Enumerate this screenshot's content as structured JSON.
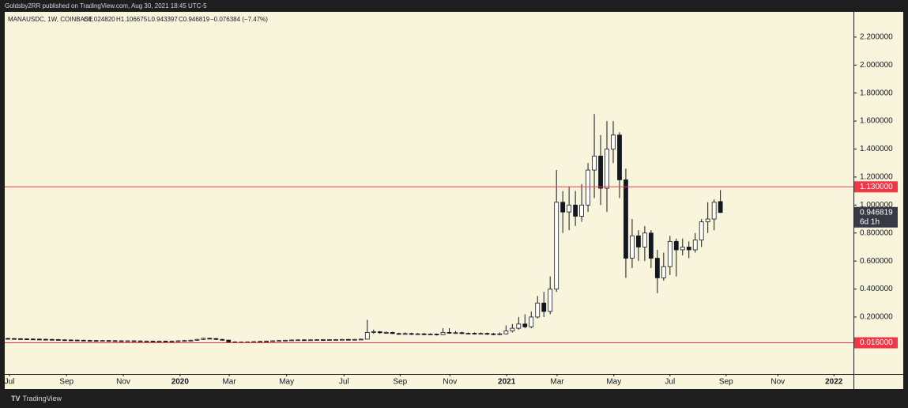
{
  "header": {
    "publisher": "Goldsby2RR published on TradingView.com, Aug 30, 2021 18:45 UTC-5"
  },
  "footer": {
    "brand": "TradingView"
  },
  "chart_data": {
    "type": "candlestick",
    "legend": {
      "symbol": "MANAUSDC, 1W, COINBASE",
      "open": "O1.024820",
      "high": "H1.106675",
      "low": "L0.943397",
      "close": "C0.946819",
      "change": "−0.076384 (−7.47%)"
    },
    "open": [
      0.047,
      0.046,
      0.045,
      0.044,
      0.043,
      0.042,
      0.041,
      0.04,
      0.039,
      0.037,
      0.036,
      0.035,
      0.034,
      0.033,
      0.032,
      0.031,
      0.032,
      0.031,
      0.03,
      0.029,
      0.03,
      0.029,
      0.028,
      0.028,
      0.027,
      0.028,
      0.027,
      0.028,
      0.03,
      0.032,
      0.034,
      0.04,
      0.048,
      0.046,
      0.04,
      0.035,
      0.022,
      0.02,
      0.021,
      0.022,
      0.024,
      0.026,
      0.028,
      0.03,
      0.032,
      0.034,
      0.036,
      0.037,
      0.036,
      0.037,
      0.038,
      0.037,
      0.038,
      0.039,
      0.04,
      0.039,
      0.04,
      0.042,
      0.09,
      0.095,
      0.088,
      0.09,
      0.082,
      0.08,
      0.082,
      0.078,
      0.08,
      0.076,
      0.078,
      0.074,
      0.09,
      0.085,
      0.088,
      0.082,
      0.084,
      0.08,
      0.083,
      0.08,
      0.078,
      0.08,
      0.1,
      0.12,
      0.15,
      0.13,
      0.2,
      0.3,
      0.24,
      0.4,
      1.02,
      0.95,
      1.0,
      0.92,
      1.0,
      1.25,
      1.35,
      1.12,
      1.4,
      1.5,
      1.18,
      0.62,
      0.78,
      0.7,
      0.8,
      0.62,
      0.48,
      0.56,
      0.74,
      0.68,
      0.7,
      0.68,
      0.75,
      0.88,
      0.9,
      1.02482
    ],
    "high": [
      0.051,
      0.05,
      0.049,
      0.048,
      0.047,
      0.046,
      0.045,
      0.044,
      0.043,
      0.041,
      0.04,
      0.039,
      0.038,
      0.037,
      0.036,
      0.036,
      0.036,
      0.035,
      0.034,
      0.034,
      0.034,
      0.033,
      0.032,
      0.032,
      0.032,
      0.032,
      0.032,
      0.034,
      0.036,
      0.038,
      0.044,
      0.052,
      0.052,
      0.05,
      0.044,
      0.039,
      0.026,
      0.025,
      0.026,
      0.028,
      0.03,
      0.032,
      0.034,
      0.036,
      0.038,
      0.04,
      0.041,
      0.041,
      0.041,
      0.042,
      0.042,
      0.042,
      0.043,
      0.044,
      0.044,
      0.044,
      0.046,
      0.18,
      0.11,
      0.1,
      0.098,
      0.095,
      0.088,
      0.09,
      0.088,
      0.086,
      0.085,
      0.084,
      0.082,
      0.12,
      0.12,
      0.1,
      0.095,
      0.09,
      0.09,
      0.09,
      0.088,
      0.086,
      0.09,
      0.14,
      0.15,
      0.2,
      0.22,
      0.24,
      0.35,
      0.38,
      0.49,
      1.25,
      1.1,
      1.13,
      1.1,
      1.15,
      1.3,
      1.65,
      1.5,
      1.6,
      1.6,
      1.52,
      1.26,
      0.9,
      0.82,
      0.85,
      0.82,
      0.68,
      0.66,
      0.78,
      0.76,
      0.76,
      0.74,
      0.8,
      0.9,
      1.02,
      1.04,
      1.106675
    ],
    "low": [
      0.042,
      0.041,
      0.04,
      0.039,
      0.038,
      0.037,
      0.036,
      0.035,
      0.033,
      0.032,
      0.031,
      0.03,
      0.029,
      0.028,
      0.027,
      0.027,
      0.027,
      0.026,
      0.025,
      0.025,
      0.025,
      0.024,
      0.024,
      0.023,
      0.023,
      0.023,
      0.023,
      0.024,
      0.026,
      0.028,
      0.03,
      0.036,
      0.042,
      0.036,
      0.031,
      0.018,
      0.016,
      0.016,
      0.017,
      0.018,
      0.02,
      0.022,
      0.024,
      0.026,
      0.028,
      0.03,
      0.032,
      0.032,
      0.032,
      0.033,
      0.033,
      0.033,
      0.034,
      0.035,
      0.035,
      0.035,
      0.036,
      0.04,
      0.08,
      0.08,
      0.08,
      0.078,
      0.075,
      0.075,
      0.072,
      0.072,
      0.07,
      0.07,
      0.068,
      0.07,
      0.08,
      0.08,
      0.078,
      0.076,
      0.075,
      0.075,
      0.072,
      0.07,
      0.07,
      0.075,
      0.09,
      0.11,
      0.12,
      0.12,
      0.19,
      0.2,
      0.22,
      0.38,
      0.8,
      0.82,
      0.85,
      0.88,
      0.95,
      1.05,
      1.0,
      0.95,
      1.3,
      1.05,
      0.48,
      0.55,
      0.6,
      0.6,
      0.55,
      0.37,
      0.46,
      0.5,
      0.49,
      0.64,
      0.62,
      0.66,
      0.7,
      0.8,
      0.82,
      0.943397
    ],
    "close": [
      0.046,
      0.045,
      0.044,
      0.043,
      0.042,
      0.041,
      0.04,
      0.039,
      0.037,
      0.036,
      0.035,
      0.034,
      0.033,
      0.032,
      0.031,
      0.032,
      0.031,
      0.03,
      0.029,
      0.03,
      0.029,
      0.028,
      0.028,
      0.027,
      0.028,
      0.027,
      0.028,
      0.03,
      0.032,
      0.034,
      0.04,
      0.048,
      0.046,
      0.04,
      0.035,
      0.022,
      0.02,
      0.021,
      0.022,
      0.024,
      0.026,
      0.028,
      0.03,
      0.032,
      0.034,
      0.036,
      0.037,
      0.036,
      0.037,
      0.038,
      0.037,
      0.038,
      0.039,
      0.04,
      0.039,
      0.04,
      0.042,
      0.09,
      0.095,
      0.088,
      0.09,
      0.082,
      0.08,
      0.082,
      0.078,
      0.08,
      0.076,
      0.078,
      0.074,
      0.09,
      0.085,
      0.088,
      0.082,
      0.084,
      0.08,
      0.083,
      0.08,
      0.078,
      0.08,
      0.1,
      0.12,
      0.15,
      0.13,
      0.2,
      0.3,
      0.24,
      0.4,
      1.02,
      0.95,
      1.0,
      0.92,
      1.0,
      1.25,
      1.35,
      1.12,
      1.4,
      1.5,
      1.18,
      0.62,
      0.78,
      0.7,
      0.8,
      0.62,
      0.48,
      0.56,
      0.74,
      0.68,
      0.7,
      0.68,
      0.75,
      0.88,
      0.9,
      1.02,
      0.946819
    ],
    "up_color": "#ffffff",
    "down_color": "#131722",
    "wick_color": "#131722",
    "xlim": [
      -0.5,
      134.1
    ],
    "xticks": [
      {
        "value": 0.25,
        "label": "Jul"
      },
      {
        "value": 9.3,
        "label": "Sep"
      },
      {
        "value": 18.3,
        "label": "Nov"
      },
      {
        "value": 27.3,
        "label": "2020"
      },
      {
        "value": 35.1,
        "label": "Mar"
      },
      {
        "value": 44.2,
        "label": "May"
      },
      {
        "value": 53.3,
        "label": "Jul"
      },
      {
        "value": 62.2,
        "label": "Sep"
      },
      {
        "value": 70.1,
        "label": "Nov"
      },
      {
        "value": 79.1,
        "label": "2021"
      },
      {
        "value": 87.1,
        "label": "Mar"
      },
      {
        "value": 96.1,
        "label": "May"
      },
      {
        "value": 105.0,
        "label": "Jul"
      },
      {
        "value": 113.9,
        "label": "Sep"
      },
      {
        "value": 122.1,
        "label": "Nov"
      },
      {
        "value": 131.0,
        "label": "2022"
      }
    ],
    "ylim": [
      -0.207,
      2.38
    ],
    "yticks": [
      {
        "value": 0.2,
        "label": "0.200000"
      },
      {
        "value": 0.4,
        "label": "0.400000"
      },
      {
        "value": 0.6,
        "label": "0.600000"
      },
      {
        "value": 0.8,
        "label": "0.800000"
      },
      {
        "value": 1.0,
        "label": "1.000000"
      },
      {
        "value": 1.2,
        "label": "1.200000"
      },
      {
        "value": 1.4,
        "label": "1.400000"
      },
      {
        "value": 1.6,
        "label": "1.600000"
      },
      {
        "value": 1.8,
        "label": "1.800000"
      },
      {
        "value": 2.0,
        "label": "2.000000"
      },
      {
        "value": 2.2,
        "label": "2.200000"
      }
    ],
    "grid": false,
    "price_lines": [
      {
        "value": 1.13,
        "label": "1.130000",
        "color": "#f23645"
      },
      {
        "value": 0.016,
        "label": "0.016000",
        "color": "#f23645"
      }
    ],
    "last_price": {
      "value": 0.946819,
      "label": "0.946819",
      "countdown": "6d 1h",
      "color": "#363a45"
    }
  }
}
